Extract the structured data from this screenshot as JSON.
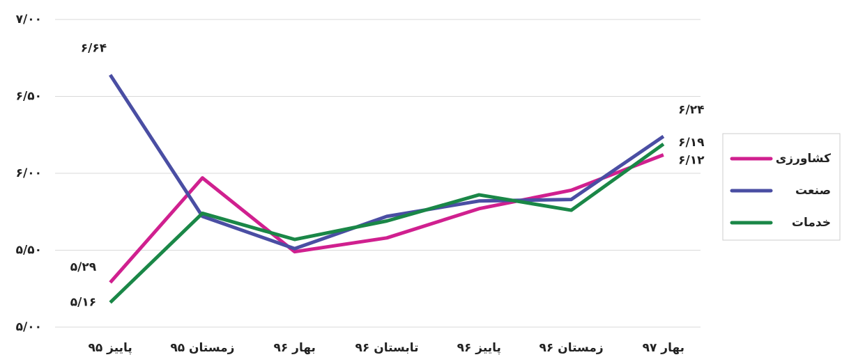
{
  "chart_data": {
    "type": "line",
    "categories": [
      "پاییز ۹۵",
      "زمستان ۹۵",
      "بهار ۹۶",
      "تابستان ۹۶",
      "پاییز ۹۶",
      "زمستان ۹۶",
      "بهار ۹۷"
    ],
    "series": [
      {
        "name": "کشاورزی",
        "color": "#d0208f",
        "values": [
          5.29,
          5.97,
          5.49,
          5.58,
          5.77,
          5.89,
          6.12
        ],
        "value_labels": [
          "۵/۲۹",
          null,
          null,
          null,
          null,
          null,
          "۶/۱۲"
        ]
      },
      {
        "name": "صنعت",
        "color": "#4a4ea3",
        "values": [
          6.64,
          5.72,
          5.51,
          5.72,
          5.82,
          5.83,
          6.24
        ],
        "value_labels": [
          "۶/۶۴",
          null,
          null,
          null,
          null,
          null,
          "۶/۲۴"
        ]
      },
      {
        "name": "خدمات",
        "color": "#1a8747",
        "values": [
          5.16,
          5.74,
          5.57,
          5.69,
          5.86,
          5.76,
          6.19
        ],
        "value_labels": [
          "۵/۱۶",
          null,
          null,
          null,
          null,
          null,
          "۶/۱۹"
        ]
      }
    ],
    "ylim": [
      5,
      7
    ],
    "yticks": [
      {
        "value": 5,
        "label": "۵/۰۰"
      },
      {
        "value": 5.5,
        "label": "۵/۵۰"
      },
      {
        "value": 6,
        "label": "۶/۰۰"
      },
      {
        "value": 6.5,
        "label": "۶/۵۰"
      },
      {
        "value": 7,
        "label": "۷/۰۰"
      }
    ],
    "grid": true,
    "legend": "right"
  }
}
